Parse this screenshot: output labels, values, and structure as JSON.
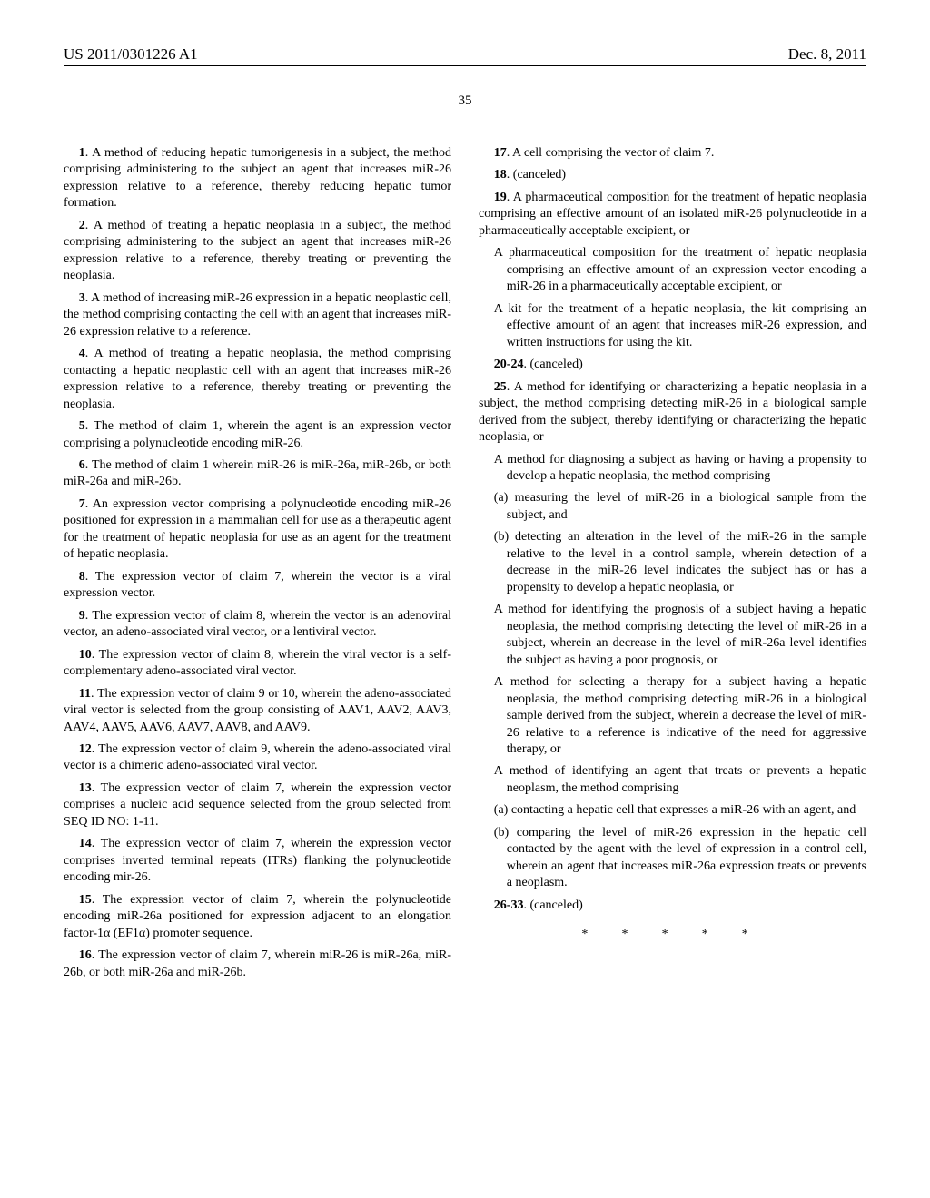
{
  "header": {
    "pub_number": "US 2011/0301226 A1",
    "date": "Dec. 8, 2011"
  },
  "page_number": "35",
  "claims": {
    "c1": "A method of reducing hepatic tumorigenesis in a subject, the method comprising administering to the subject an agent that increases miR-26 expression relative to a reference, thereby reducing hepatic tumor formation.",
    "c2": "A method of treating a hepatic neoplasia in a subject, the method comprising administering to the subject an agent that increases miR-26 expression relative to a reference, thereby treating or preventing the neoplasia.",
    "c3": "A method of increasing miR-26 expression in a hepatic neoplastic cell, the method comprising contacting the cell with an agent that increases miR-26 expression relative to a reference.",
    "c4": "A method of treating a hepatic neoplasia, the method comprising contacting a hepatic neoplastic cell with an agent that increases miR-26 expression relative to a reference, thereby treating or preventing the neoplasia.",
    "c5": "The method of claim 1, wherein the agent is an expression vector comprising a polynucleotide encoding miR-26.",
    "c6": "The method of claim 1 wherein miR-26 is miR-26a, miR-26b, or both miR-26a and miR-26b.",
    "c7": "An expression vector comprising a polynucleotide encoding miR-26 positioned for expression in a mammalian cell for use as a therapeutic agent for the treatment of hepatic neoplasia for use as an agent for the treatment of hepatic neoplasia.",
    "c8": "The expression vector of claim 7, wherein the vector is a viral expression vector.",
    "c9": "The expression vector of claim 8, wherein the vector is an adenoviral vector, an adeno-associated viral vector, or a lentiviral vector.",
    "c10": "The expression vector of claim 8, wherein the viral vector is a self-complementary adeno-associated viral vector.",
    "c11": "The expression vector of claim 9 or 10, wherein the adeno-associated viral vector is selected from the group consisting of AAV1, AAV2, AAV3, AAV4, AAV5, AAV6, AAV7, AAV8, and AAV9.",
    "c12": "The expression vector of claim 9, wherein the adeno-associated viral vector is a chimeric adeno-associated viral vector.",
    "c13": "The expression vector of claim 7, wherein the expression vector comprises a nucleic acid sequence selected from the group selected from SEQ ID NO: 1-11.",
    "c14": "The expression vector of claim 7, wherein the expression vector comprises inverted terminal repeats (ITRs) flanking the polynucleotide encoding mir-26.",
    "c15": "The expression vector of claim 7, wherein the polynucleotide encoding miR-26a positioned for expression adjacent to an elongation factor-1α (EF1α) promoter sequence.",
    "c16": "The expression vector of claim 7, wherein miR-26 is miR-26a, miR-26b, or both miR-26a and miR-26b.",
    "c17": "A cell comprising the vector of claim 7.",
    "c18": "(canceled)",
    "c19_lead": "A pharmaceutical composition for the treatment of hepatic neoplasia comprising an effective amount of an isolated miR-26 polynucleotide in a pharmaceutically acceptable excipient, or",
    "c19_a": "A pharmaceutical composition for the treatment of hepatic neoplasia comprising an effective amount of an expression vector encoding a miR-26 in a pharmaceutically acceptable excipient, or",
    "c19_b": "A kit for the treatment of a hepatic neoplasia, the kit comprising an effective amount of an agent that increases miR-26 expression, and written instructions for using the kit.",
    "c20_24": "(canceled)",
    "c25_lead": "A method for identifying or characterizing a hepatic neoplasia in a subject, the method comprising detecting miR-26 in a biological sample derived from the subject, thereby identifying or characterizing the hepatic neoplasia, or",
    "c25_a": "A method for diagnosing a subject as having or having a propensity to develop a hepatic neoplasia, the method comprising",
    "c25_a_i": "(a) measuring the level of miR-26 in a biological sample from the subject, and",
    "c25_a_ii": "(b) detecting an alteration in the level of the miR-26 in the sample relative to the level in a control sample, wherein detection of a decrease in the miR-26 level indicates the subject has or has a propensity to develop a hepatic neoplasia, or",
    "c25_b": "A method for identifying the prognosis of a subject having a hepatic neoplasia, the method comprising detecting the level of miR-26 in a subject, wherein an decrease in the level of miR-26a level identifies the subject as having a poor prognosis, or",
    "c25_c": "A method for selecting a therapy for a subject having a hepatic neoplasia, the method comprising detecting miR-26 in a biological sample derived from the subject, wherein a decrease the level of miR-26 relative to a reference is indicative of the need for aggressive therapy, or",
    "c25_d": "A method of identifying an agent that treats or prevents a hepatic neoplasm, the method comprising",
    "c25_d_i": "(a) contacting a hepatic cell that expresses a miR-26 with an agent, and",
    "c25_d_ii": "(b) comparing the level of miR-26 expression in the hepatic cell contacted by the agent with the level of expression in a control cell, wherein an agent that increases miR-26a expression treats or prevents a neoplasm.",
    "c26_33": "(canceled)"
  },
  "nums": {
    "n1": "1",
    "n2": "2",
    "n3": "3",
    "n4": "4",
    "n5": "5",
    "n6": "6",
    "n7": "7",
    "n8": "8",
    "n9": "9",
    "n10": "10",
    "n11": "11",
    "n12": "12",
    "n13": "13",
    "n14": "14",
    "n15": "15",
    "n16": "16",
    "n17": "17",
    "n18": "18",
    "n19": "19",
    "n20_24": "20-24",
    "n25": "25",
    "n26_33": "26-33"
  },
  "stars": "*   *   *   *   *"
}
